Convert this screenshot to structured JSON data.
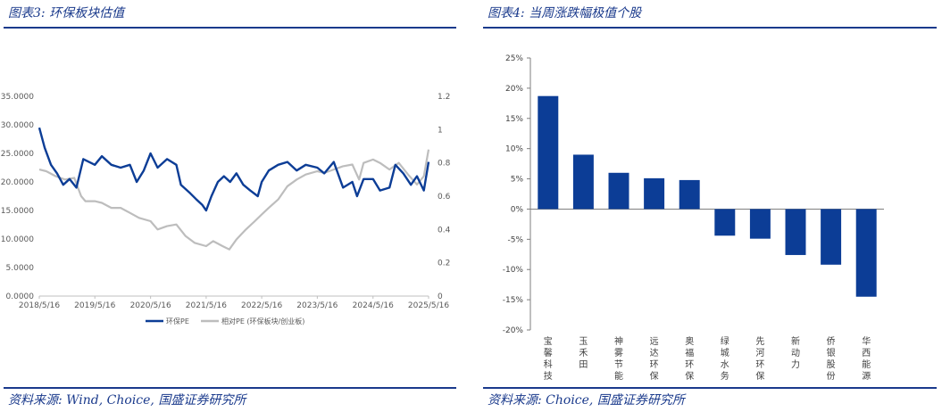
{
  "left": {
    "title": "图表3:  环保板块估值",
    "source": "资料来源:  Wind,  Choice,  国盛证券研究所"
  },
  "right": {
    "title": "图表4:  当周涨跌幅极值个股",
    "source": "资料来源:  Choice,  国盛证券研究所"
  },
  "colors": {
    "accent": "#1a3a8c",
    "primary_series": "#0c3d96",
    "secondary_series": "#bdbdbd",
    "bar": "#0c3d96"
  },
  "chart_data": [
    {
      "type": "line",
      "x_tick_labels": [
        "2018/5/16",
        "2019/5/16",
        "2020/5/16",
        "2021/5/16",
        "2022/5/16",
        "2023/5/16",
        "2024/5/16",
        "2025/5/16"
      ],
      "x_range": [
        "2018/5/16",
        "2025/5/16"
      ],
      "y_left": {
        "ticks": [
          "0.0000",
          "5.0000",
          "10.0000",
          "15.0000",
          "20.0000",
          "25.0000",
          "30.0000",
          "35.0000"
        ],
        "ylim": [
          0,
          35
        ]
      },
      "y_right": {
        "ticks": [
          "0",
          "0.2",
          "0.4",
          "0.6",
          "0.8",
          "1",
          "1.2"
        ],
        "ylim": [
          0,
          1.2
        ]
      },
      "legend_position": "bottom",
      "series": [
        {
          "name": "环保PE",
          "axis": "left",
          "points": [
            [
              "2018/5/16",
              29.5
            ],
            [
              "2018/6/20",
              26
            ],
            [
              "2018/8/1",
              23
            ],
            [
              "2018/9/10",
              21.5
            ],
            [
              "2018/10/20",
              19.5
            ],
            [
              "2018/12/1",
              20.5
            ],
            [
              "2019/1/15",
              19
            ],
            [
              "2019/3/1",
              24
            ],
            [
              "2019/5/16",
              23
            ],
            [
              "2019/7/1",
              24.5
            ],
            [
              "2019/9/1",
              23
            ],
            [
              "2019/11/1",
              22.5
            ],
            [
              "2020/1/1",
              23
            ],
            [
              "2020/2/15",
              20
            ],
            [
              "2020/4/1",
              22
            ],
            [
              "2020/5/16",
              25
            ],
            [
              "2020/7/1",
              22.5
            ],
            [
              "2020/9/1",
              24
            ],
            [
              "2020/11/1",
              23
            ],
            [
              "2020/12/1",
              19.5
            ],
            [
              "2021/2/1",
              18
            ],
            [
              "2021/3/10",
              17
            ],
            [
              "2021/4/20",
              16
            ],
            [
              "2021/5/16",
              15
            ],
            [
              "2021/6/20",
              17.5
            ],
            [
              "2021/8/1",
              20
            ],
            [
              "2021/9/10",
              21
            ],
            [
              "2021/10/20",
              20
            ],
            [
              "2021/12/1",
              21.5
            ],
            [
              "2022/1/15",
              19.5
            ],
            [
              "2022/3/1",
              18.5
            ],
            [
              "2022/4/20",
              17.5
            ],
            [
              "2022/5/16",
              20
            ],
            [
              "2022/7/1",
              22
            ],
            [
              "2022/9/1",
              23
            ],
            [
              "2022/11/1",
              23.5
            ],
            [
              "2023/1/1",
              22
            ],
            [
              "2023/3/1",
              23
            ],
            [
              "2023/5/16",
              22.5
            ],
            [
              "2023/7/1",
              21.5
            ],
            [
              "2023/9/1",
              23.5
            ],
            [
              "2023/11/1",
              19
            ],
            [
              "2024/1/1",
              20
            ],
            [
              "2024/2/1",
              17.5
            ],
            [
              "2024/3/15",
              20.5
            ],
            [
              "2024/5/16",
              20.5
            ],
            [
              "2024/7/1",
              18.5
            ],
            [
              "2024/9/1",
              19
            ],
            [
              "2024/10/10",
              23
            ],
            [
              "2024/12/1",
              21.5
            ],
            [
              "2025/1/20",
              19.5
            ],
            [
              "2025/3/1",
              21
            ],
            [
              "2025/4/15",
              18.5
            ],
            [
              "2025/5/16",
              23.5
            ]
          ]
        },
        {
          "name": "相对PE (环保板块/创业板)",
          "axis": "right",
          "points": [
            [
              "2018/5/16",
              0.76
            ],
            [
              "2018/7/1",
              0.75
            ],
            [
              "2018/9/1",
              0.72
            ],
            [
              "2018/11/1",
              0.7
            ],
            [
              "2019/1/1",
              0.71
            ],
            [
              "2019/2/15",
              0.6
            ],
            [
              "2019/3/15",
              0.57
            ],
            [
              "2019/5/16",
              0.57
            ],
            [
              "2019/7/1",
              0.56
            ],
            [
              "2019/9/1",
              0.53
            ],
            [
              "2019/11/1",
              0.53
            ],
            [
              "2020/1/1",
              0.5
            ],
            [
              "2020/3/1",
              0.47
            ],
            [
              "2020/5/16",
              0.45
            ],
            [
              "2020/7/1",
              0.4
            ],
            [
              "2020/9/1",
              0.42
            ],
            [
              "2020/11/1",
              0.43
            ],
            [
              "2021/1/1",
              0.36
            ],
            [
              "2021/3/1",
              0.32
            ],
            [
              "2021/5/16",
              0.3
            ],
            [
              "2021/7/1",
              0.33
            ],
            [
              "2021/9/1",
              0.3
            ],
            [
              "2021/10/15",
              0.28
            ],
            [
              "2021/12/1",
              0.34
            ],
            [
              "2022/2/1",
              0.4
            ],
            [
              "2022/4/1",
              0.45
            ],
            [
              "2022/5/16",
              0.49
            ],
            [
              "2022/7/1",
              0.53
            ],
            [
              "2022/9/1",
              0.58
            ],
            [
              "2022/11/1",
              0.66
            ],
            [
              "2023/1/1",
              0.7
            ],
            [
              "2023/3/1",
              0.73
            ],
            [
              "2023/5/16",
              0.75
            ],
            [
              "2023/7/1",
              0.74
            ],
            [
              "2023/9/1",
              0.76
            ],
            [
              "2023/11/1",
              0.78
            ],
            [
              "2024/1/1",
              0.79
            ],
            [
              "2024/2/15",
              0.7
            ],
            [
              "2024/3/15",
              0.8
            ],
            [
              "2024/5/16",
              0.82
            ],
            [
              "2024/7/1",
              0.8
            ],
            [
              "2024/9/1",
              0.76
            ],
            [
              "2024/11/1",
              0.8
            ],
            [
              "2025/1/1",
              0.73
            ],
            [
              "2025/3/1",
              0.67
            ],
            [
              "2025/4/15",
              0.72
            ],
            [
              "2025/5/16",
              0.88
            ]
          ]
        }
      ]
    },
    {
      "type": "bar",
      "categories": [
        "宝馨科技",
        "玉禾田",
        "神雾节能",
        "远达环保",
        "奥福环保",
        "绿城水务",
        "先河环保",
        "新动力",
        "侨银股份",
        "华西能源"
      ],
      "values": [
        18.7,
        9.0,
        6.0,
        5.1,
        4.8,
        -4.4,
        -4.9,
        -7.6,
        -9.2,
        -14.5
      ],
      "y_tick_labels": [
        "-20%",
        "-15%",
        "-10%",
        "-5%",
        "0%",
        "5%",
        "10%",
        "15%",
        "20%",
        "25%"
      ],
      "ylim": [
        -20,
        25
      ],
      "grid": false
    }
  ]
}
